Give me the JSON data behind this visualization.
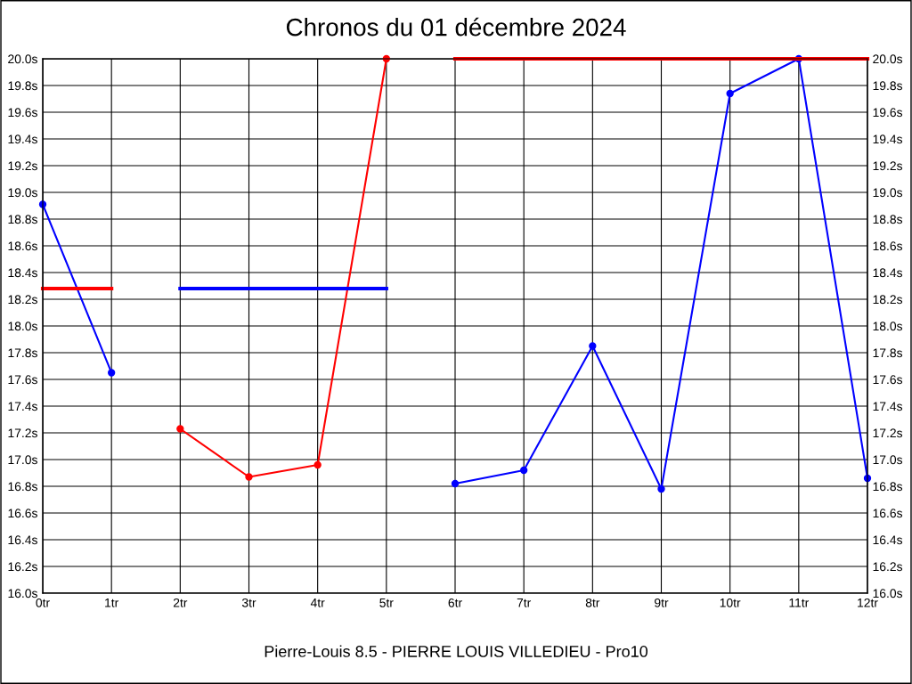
{
  "chart_data": {
    "type": "line",
    "title": "Chronos du 01 décembre 2024",
    "annotations": [
      "Pierre-Louis 8.5 - PIERRE LOUIS VILLEDIEU - Pro10"
    ],
    "xlim": [
      0,
      12
    ],
    "xticks": [
      {
        "value": 0,
        "label": "0tr"
      },
      {
        "value": 1,
        "label": "1tr"
      },
      {
        "value": 2,
        "label": "2tr"
      },
      {
        "value": 3,
        "label": "3tr"
      },
      {
        "value": 4,
        "label": "4tr"
      },
      {
        "value": 5,
        "label": "5tr"
      },
      {
        "value": 6,
        "label": "6tr"
      },
      {
        "value": 7,
        "label": "7tr"
      },
      {
        "value": 8,
        "label": "8tr"
      },
      {
        "value": 9,
        "label": "9tr"
      },
      {
        "value": 10,
        "label": "10tr"
      },
      {
        "value": 11,
        "label": "11tr"
      },
      {
        "value": 12,
        "label": "12tr"
      }
    ],
    "ylim": [
      16.0,
      20.0
    ],
    "yticks": [
      {
        "value": 16.0,
        "label": "16.0s"
      },
      {
        "value": 16.2,
        "label": "16.2s"
      },
      {
        "value": 16.4,
        "label": "16.4s"
      },
      {
        "value": 16.6,
        "label": "16.6s"
      },
      {
        "value": 16.8,
        "label": "16.8s"
      },
      {
        "value": 17.0,
        "label": "17.0s"
      },
      {
        "value": 17.2,
        "label": "17.2s"
      },
      {
        "value": 17.4,
        "label": "17.4s"
      },
      {
        "value": 17.6,
        "label": "17.6s"
      },
      {
        "value": 17.8,
        "label": "17.8s"
      },
      {
        "value": 18.0,
        "label": "18.0s"
      },
      {
        "value": 18.2,
        "label": "18.2s"
      },
      {
        "value": 18.4,
        "label": "18.4s"
      },
      {
        "value": 18.6,
        "label": "18.6s"
      },
      {
        "value": 18.8,
        "label": "18.8s"
      },
      {
        "value": 19.0,
        "label": "19.0s"
      },
      {
        "value": 19.2,
        "label": "19.2s"
      },
      {
        "value": 19.4,
        "label": "19.4s"
      },
      {
        "value": 19.6,
        "label": "19.6s"
      },
      {
        "value": 19.8,
        "label": "19.8s"
      },
      {
        "value": 20.0,
        "label": "20.0s"
      }
    ],
    "y2lim": [
      16.0,
      20.0
    ],
    "y2ticks": [
      {
        "value": 16.0,
        "label": "16.0s"
      },
      {
        "value": 16.2,
        "label": "16.2s"
      },
      {
        "value": 16.4,
        "label": "16.4s"
      },
      {
        "value": 16.6,
        "label": "16.6s"
      },
      {
        "value": 16.8,
        "label": "16.8s"
      },
      {
        "value": 17.0,
        "label": "17.0s"
      },
      {
        "value": 17.2,
        "label": "17.2s"
      },
      {
        "value": 17.4,
        "label": "17.4s"
      },
      {
        "value": 17.6,
        "label": "17.6s"
      },
      {
        "value": 17.8,
        "label": "17.8s"
      },
      {
        "value": 18.0,
        "label": "18.0s"
      },
      {
        "value": 18.2,
        "label": "18.2s"
      },
      {
        "value": 18.4,
        "label": "18.4s"
      },
      {
        "value": 18.6,
        "label": "18.6s"
      },
      {
        "value": 18.8,
        "label": "18.8s"
      },
      {
        "value": 19.0,
        "label": "19.0s"
      },
      {
        "value": 19.2,
        "label": "19.2s"
      },
      {
        "value": 19.4,
        "label": "19.4s"
      },
      {
        "value": 19.6,
        "label": "19.6s"
      },
      {
        "value": 19.8,
        "label": "19.8s"
      },
      {
        "value": 20.0,
        "label": "20.0s"
      }
    ],
    "grid": true,
    "legend": false,
    "line_style": "solid",
    "series": [
      {
        "color": "#0000ff",
        "marker": "circle",
        "x": [
          0,
          1
        ],
        "values": [
          18.91,
          17.65
        ]
      },
      {
        "color": "#ff0000",
        "marker": "circle",
        "x": [
          2,
          3,
          4,
          5
        ],
        "values": [
          17.23,
          16.87,
          16.96,
          20.0
        ]
      },
      {
        "color": "#0000ff",
        "marker": "circle",
        "x": [
          6,
          7,
          8,
          9,
          10,
          11,
          12
        ],
        "values": [
          16.82,
          16.92,
          17.85,
          16.78,
          19.74,
          20.0,
          16.86
        ]
      },
      {
        "color": "#ff0000",
        "marker": "none",
        "x": [
          0,
          1
        ],
        "values": [
          18.28,
          18.28
        ]
      },
      {
        "color": "#0000ff",
        "marker": "none",
        "x": [
          2,
          5
        ],
        "values": [
          18.28,
          18.28
        ]
      },
      {
        "color": "#ff0000",
        "marker": "none",
        "x": [
          6,
          12
        ],
        "values": [
          20.0,
          20.0
        ]
      }
    ]
  }
}
